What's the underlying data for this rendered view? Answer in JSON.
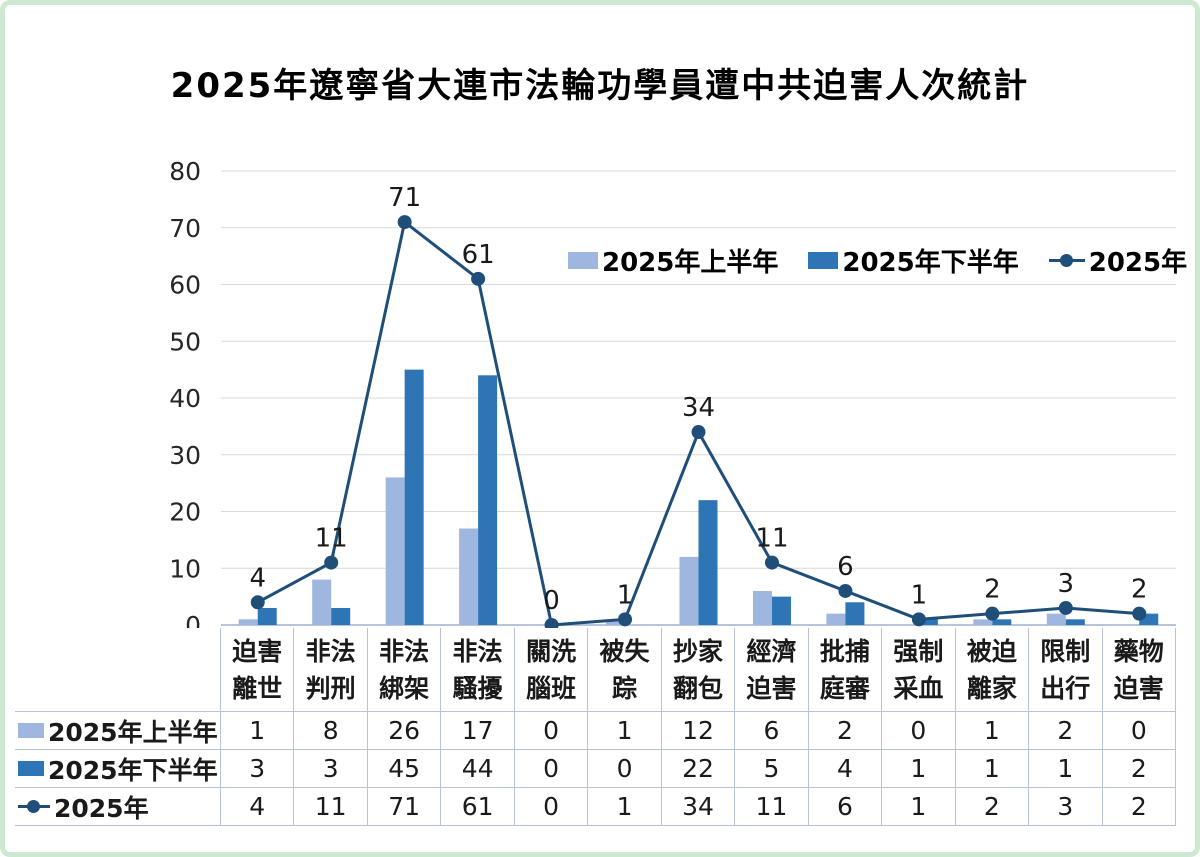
{
  "title": "2025年遼寧省大連市法輪功學員遭中共迫害人次統計",
  "colors": {
    "first_half_bar": "#9FB6DF",
    "second_half_bar": "#2E75B6",
    "line": "#1F4E79",
    "gridline": "#D9D9D9",
    "axis": "#B9C6DA",
    "table_border": "#B7C3D6",
    "frame": "#CDE9D2",
    "text": "#1A1A1A"
  },
  "chart_data": {
    "type": "bar+line",
    "title": "2025年遼寧省大連市法輪功學員遭中共迫害人次統計",
    "categories": [
      "迫害離世",
      "非法判刑",
      "非法綁架",
      "非法騷擾",
      "關洗腦班",
      "被失踪",
      "抄家翻包",
      "經濟迫害",
      "批捕庭審",
      "强制采血",
      "被迫離家",
      "限制出行",
      "藥物迫害"
    ],
    "series": [
      {
        "name": "2025年上半年",
        "type": "bar",
        "values": [
          1,
          8,
          26,
          17,
          0,
          1,
          12,
          6,
          2,
          0,
          1,
          2,
          0
        ]
      },
      {
        "name": "2025年下半年",
        "type": "bar",
        "values": [
          3,
          3,
          45,
          44,
          0,
          0,
          22,
          5,
          4,
          1,
          1,
          1,
          2
        ]
      },
      {
        "name": "2025年",
        "type": "line",
        "values": [
          4,
          11,
          71,
          61,
          0,
          1,
          34,
          11,
          6,
          1,
          2,
          3,
          2
        ]
      }
    ],
    "ylim": [
      0,
      80
    ],
    "yticks": [
      0,
      10,
      20,
      30,
      40,
      50,
      60,
      70,
      80
    ],
    "grid": true,
    "legend_position": "top-right-inside",
    "point_labels": true
  }
}
